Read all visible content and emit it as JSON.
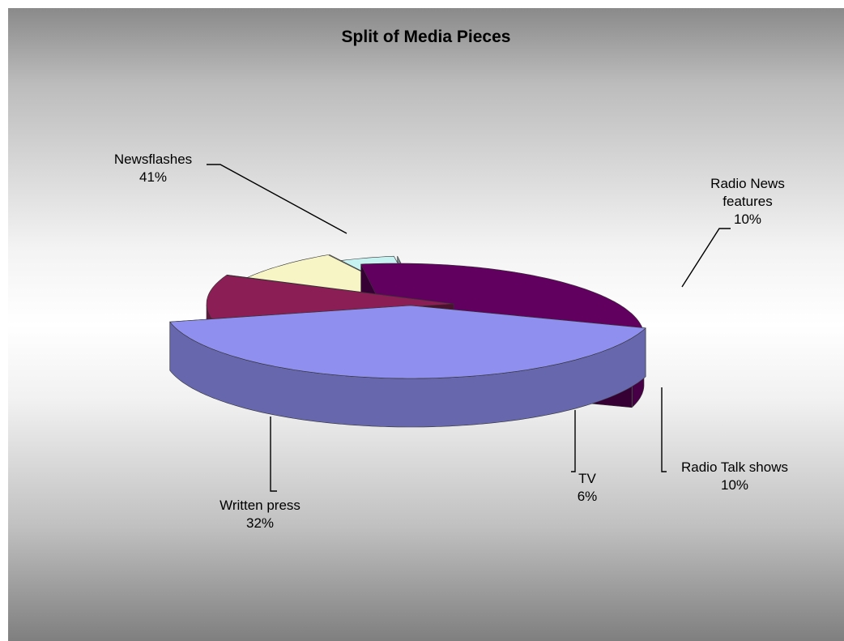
{
  "chart_data": {
    "type": "pie",
    "title": "Split of Media Pieces",
    "slices": [
      {
        "label": "Newsflashes",
        "value": 41,
        "value_label": "41%",
        "color": "#8f8ff0"
      },
      {
        "label": "Radio News features",
        "label_lines": [
          "Radio News",
          "features"
        ],
        "value": 10,
        "value_label": "10%",
        "color": "#8b1f55"
      },
      {
        "label": "Radio Talk shows",
        "value": 10,
        "value_label": "10%",
        "color": "#f7f5c6"
      },
      {
        "label": "TV",
        "value": 6,
        "value_label": "6%",
        "color": "#c6f2f2"
      },
      {
        "label": "Written press",
        "value": 32,
        "value_label": "32%",
        "color": "#620060"
      }
    ],
    "style": "3d-exploded"
  }
}
